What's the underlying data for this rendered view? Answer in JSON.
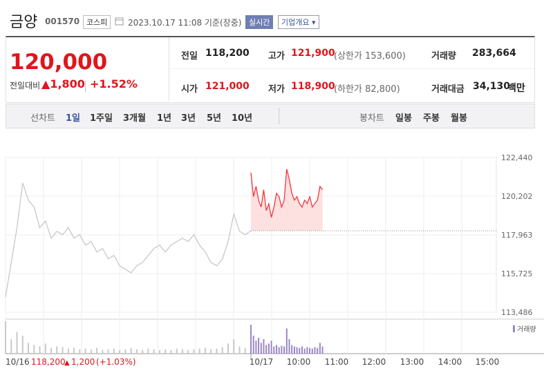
{
  "header": {
    "name": "금양",
    "code": "001570",
    "market": "코스피",
    "datetime": "2023.10.17 11:08 기준(장중)",
    "realtime": "실시간",
    "company": "기업개요"
  },
  "quote": {
    "price": "120,000",
    "change_label": "전일대비",
    "change": "1,800",
    "change_pct": "+1.52%",
    "stats": [
      {
        "label": "전일",
        "value": "118,200"
      },
      {
        "label": "고가",
        "value": "121,900",
        "note": "(상한가 153,600)"
      },
      {
        "label": "거래량",
        "value": "283,664"
      },
      {
        "label": "시가",
        "value": "121,000"
      },
      {
        "label": "저가",
        "value": "118,900",
        "note": "(하한가 82,800)"
      },
      {
        "label": "거래대금",
        "value": "34,130",
        "unit": "백만"
      }
    ]
  },
  "tabs": {
    "line_label": "선차트",
    "line_tabs": [
      "1일",
      "1주일",
      "3개월",
      "1년",
      "3년",
      "5년",
      "10년"
    ],
    "candle_label": "봉차트",
    "candle_tabs": [
      "일봉",
      "주봉",
      "월봉"
    ]
  },
  "chart_data": {
    "type": "line",
    "ylim": [
      113486,
      122440
    ],
    "yticks": [
      {
        "value": 122440,
        "label": "122,440"
      },
      {
        "value": 120202,
        "label": "120,202"
      },
      {
        "value": 117963,
        "label": "117,963"
      },
      {
        "value": 115725,
        "label": "115,725"
      },
      {
        "value": 113486,
        "label": "113,486"
      }
    ],
    "prev_close": 118200,
    "x_labels": [
      "10/17",
      "10:00",
      "11:00",
      "12:00",
      "13:00",
      "14:00",
      "15:00"
    ],
    "series": [
      {
        "color": "#c8c8c8",
        "values": [
          114370,
          116370,
          118370,
          120970,
          119970,
          119570,
          118370,
          118770,
          117770,
          118170,
          117970,
          118370,
          117770,
          117970,
          117370,
          117570,
          116970,
          117170,
          116570,
          116770,
          116170,
          115970,
          115770,
          116170,
          116370,
          116770,
          117170,
          117370,
          116970,
          117370,
          117570,
          117770,
          117570,
          117970,
          117370,
          116970,
          116370,
          116170,
          116570,
          117570,
          119170,
          118170,
          117970,
          118200
        ],
        "volume": [
          45,
          20,
          30,
          25,
          15,
          12,
          10,
          14,
          8,
          10,
          9,
          7,
          8,
          6,
          7,
          6,
          8,
          5,
          6,
          7,
          5,
          6,
          8,
          6,
          5,
          7,
          6,
          5,
          6,
          5,
          7,
          6,
          5,
          6,
          7,
          8,
          6,
          7,
          9,
          14,
          20,
          10,
          8,
          6
        ]
      },
      {
        "color": "#f0363c",
        "values": [
          121570,
          120170,
          120770,
          119970,
          119570,
          120570,
          119370,
          119770,
          118970,
          119570,
          120370,
          120170,
          119570,
          119970,
          121770,
          121170,
          120370,
          119970,
          120170,
          119770,
          119570,
          119970,
          119770,
          120170,
          119570,
          119770,
          119970,
          120770,
          120570
        ],
        "volume": [
          40,
          25,
          18,
          22,
          15,
          20,
          12,
          14,
          18,
          10,
          12,
          9,
          11,
          10,
          35,
          20,
          12,
          10,
          9,
          8,
          10,
          7,
          9,
          8,
          7,
          9,
          8,
          15,
          10
        ]
      }
    ],
    "volume_label": "거래량",
    "footer": {
      "date": "10/16",
      "close": "118,200",
      "change": "1,200",
      "pct": "(+1.03%)"
    }
  }
}
